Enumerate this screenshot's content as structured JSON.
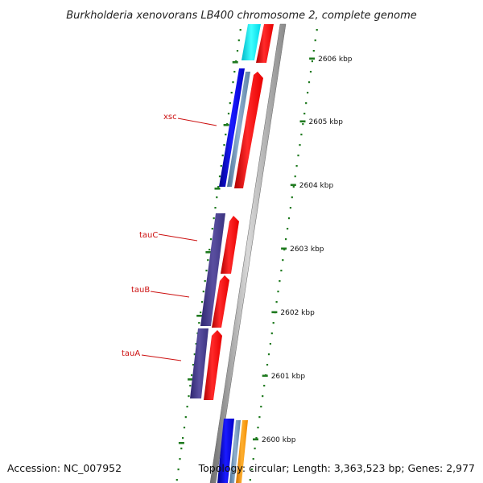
{
  "title": "Burkholderia xenovorans LB400 chromosome 2, complete genome",
  "footer": {
    "accession": "Accession: NC_007952",
    "summary": "Topology: circular; Length: 3,363,523 bp; Genes: 2,977"
  },
  "scale_labels": [
    "2606 kbp",
    "2605 kbp",
    "2604 kbp",
    "2603 kbp",
    "2602 kbp",
    "2601 kbp",
    "2600 kbp"
  ],
  "gene_labels": [
    "xsc",
    "tauC",
    "tauB",
    "tauA"
  ],
  "colors": {
    "forward_cds": "#ff1a1a",
    "reverse_cds": "#1a1aee",
    "reverse_cds_alt": "#4a3f8f",
    "rna": "#6e8fb0",
    "misc": "#00e5ee",
    "other": "#ff9900",
    "backbone": "#888888",
    "scale_ticks": "#1f7a1f",
    "gene_label": "#cc1111"
  }
}
